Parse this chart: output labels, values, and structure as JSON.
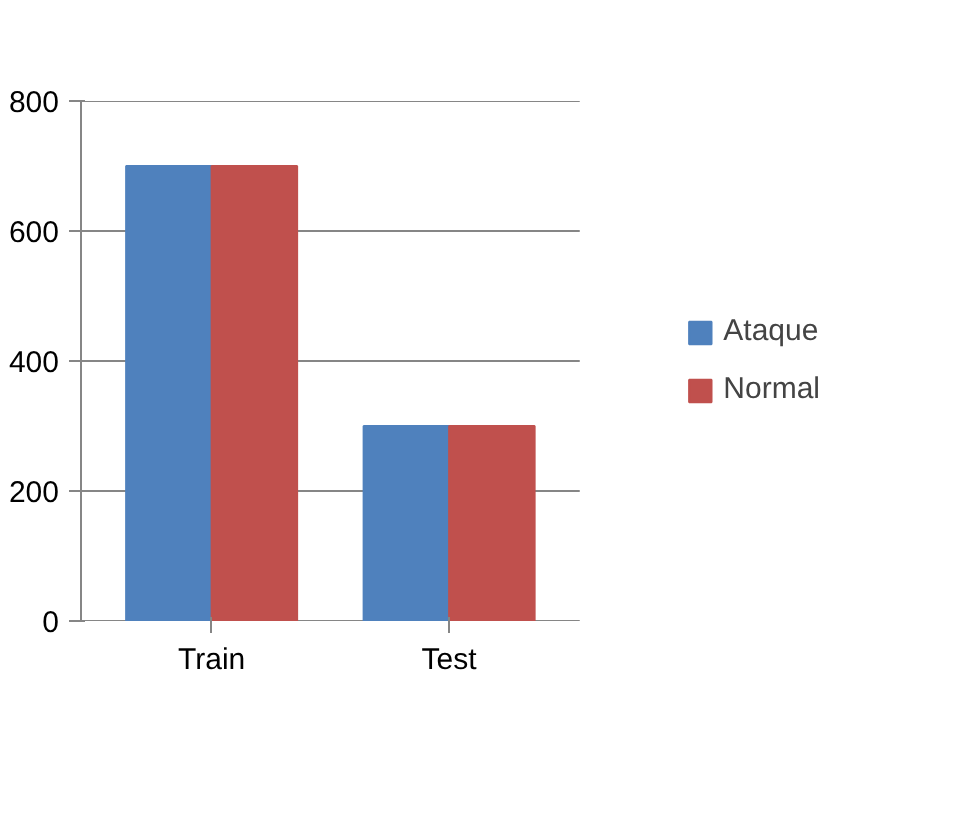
{
  "chart_data": {
    "type": "bar",
    "categories": [
      "Train",
      "Test"
    ],
    "series": [
      {
        "name": "Ataque",
        "color": "#4f81bd",
        "values": [
          700,
          300
        ]
      },
      {
        "name": "Normal",
        "color": "#c0504d",
        "values": [
          700,
          300
        ]
      }
    ],
    "ylim": [
      0,
      800
    ],
    "yticks": [
      0,
      200,
      400,
      600,
      800
    ],
    "grid": "y",
    "legend": "right"
  }
}
